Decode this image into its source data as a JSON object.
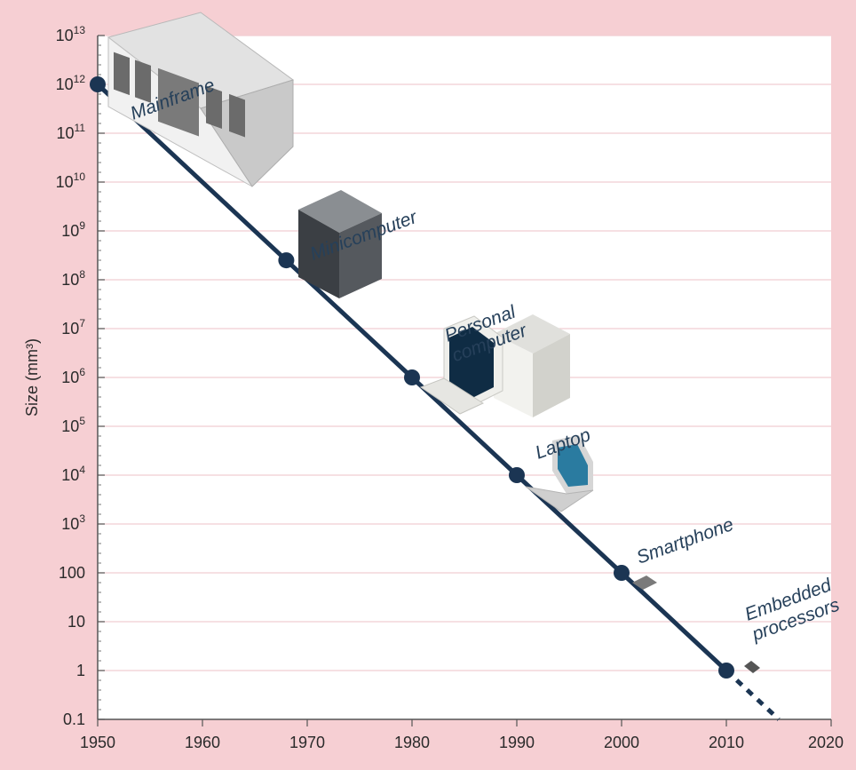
{
  "chart_data": {
    "type": "line",
    "ylabel": "Size (mm³)",
    "xlabel": "",
    "title": "",
    "x_scale": "linear",
    "y_scale": "log",
    "xlim": [
      1950,
      2020
    ],
    "ylim": [
      0.1,
      10000000000000.0
    ],
    "x_ticks": [
      1950,
      1960,
      1970,
      1980,
      1990,
      2000,
      2010,
      2020
    ],
    "y_ticks": [
      {
        "value": 0.1,
        "label": "0.1",
        "base": "",
        "exp": ""
      },
      {
        "value": 1,
        "label": "1",
        "base": "",
        "exp": ""
      },
      {
        "value": 10,
        "label": "10",
        "base": "",
        "exp": ""
      },
      {
        "value": 100,
        "label": "100",
        "base": "",
        "exp": ""
      },
      {
        "value": 1000,
        "label": "",
        "base": "10",
        "exp": "3"
      },
      {
        "value": 10000,
        "label": "",
        "base": "10",
        "exp": "4"
      },
      {
        "value": 100000,
        "label": "",
        "base": "10",
        "exp": "5"
      },
      {
        "value": 1000000,
        "label": "",
        "base": "10",
        "exp": "6"
      },
      {
        "value": 10000000,
        "label": "",
        "base": "10",
        "exp": "7"
      },
      {
        "value": 100000000,
        "label": "",
        "base": "10",
        "exp": "8"
      },
      {
        "value": 1000000000,
        "label": "",
        "base": "10",
        "exp": "9"
      },
      {
        "value": 10000000000,
        "label": "",
        "base": "10",
        "exp": "10"
      },
      {
        "value": 100000000000,
        "label": "",
        "base": "10",
        "exp": "11"
      },
      {
        "value": 1000000000000,
        "label": "",
        "base": "10",
        "exp": "12"
      },
      {
        "value": 10000000000000,
        "label": "",
        "base": "10",
        "exp": "13"
      }
    ],
    "grid": "horizontal",
    "series": [
      {
        "color": "#1b3553",
        "points": [
          {
            "x": 1950,
            "y": 1000000000000.0,
            "label": [
              "Mainframe"
            ]
          },
          {
            "x": 1968,
            "y": 250000000.0,
            "label": [
              "Minicomputer"
            ]
          },
          {
            "x": 1980,
            "y": 1000000.0,
            "label": [
              "Personal",
              "computer"
            ]
          },
          {
            "x": 1990,
            "y": 10000.0,
            "label": [
              "Laptop"
            ]
          },
          {
            "x": 2000,
            "y": 100,
            "label": [
              "Smartphone"
            ]
          },
          {
            "x": 2010,
            "y": 1,
            "label": [
              "Embedded",
              "processors"
            ]
          }
        ],
        "projection": {
          "x": 2015,
          "y": 0.1
        }
      }
    ],
    "colors": {
      "background": "#f6cfd3",
      "plot_background": "#ffffff",
      "grid": "#f1cdd2",
      "line": "#1b3553",
      "axis": "#555555",
      "label_text": "#26405a"
    }
  }
}
